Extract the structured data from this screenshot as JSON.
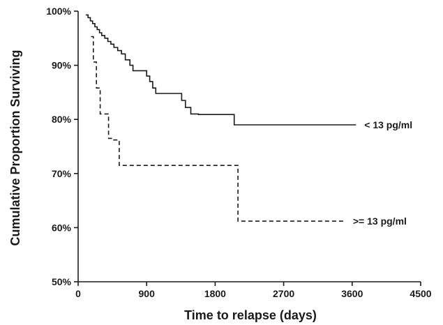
{
  "chart_data": {
    "type": "line",
    "title": "",
    "xlabel": "Time to relapse (days)",
    "ylabel": "Cumulative Proportion Surviving",
    "xlim": [
      0,
      4500
    ],
    "ylim": [
      50,
      100
    ],
    "x_ticks": [
      0,
      900,
      1800,
      2700,
      3600,
      4500
    ],
    "y_ticks": [
      50,
      60,
      70,
      80,
      90,
      100
    ],
    "y_tick_labels": [
      "50%",
      "60%",
      "70%",
      "80%",
      "90%",
      "100%"
    ],
    "grid": false,
    "series": [
      {
        "name": "< 13 pg/ml",
        "line_style": "solid",
        "color": "#1a1a1a",
        "x": [
          100,
          130,
          160,
          190,
          220,
          250,
          280,
          310,
          350,
          390,
          430,
          470,
          520,
          570,
          620,
          680,
          720,
          900,
          940,
          980,
          1020,
          1360,
          1410,
          1480,
          1580,
          2050,
          3650
        ],
        "y": [
          99.3,
          98.8,
          98.2,
          97.7,
          97.1,
          96.6,
          96.0,
          95.5,
          95.0,
          94.4,
          93.9,
          93.3,
          92.7,
          92.1,
          91.0,
          90.0,
          89.0,
          88.0,
          87.0,
          85.8,
          84.8,
          83.5,
          82.2,
          81.0,
          80.9,
          79.0,
          79.0
        ]
      },
      {
        "name": ">= 13 pg/ml",
        "line_style": "dashed",
        "color": "#1a1a1a",
        "x": [
          170,
          200,
          240,
          290,
          400,
          450,
          540,
          2100,
          3500
        ],
        "y": [
          95.3,
          90.6,
          85.8,
          81.0,
          76.5,
          76.2,
          71.5,
          61.2,
          61.2
        ]
      }
    ]
  }
}
